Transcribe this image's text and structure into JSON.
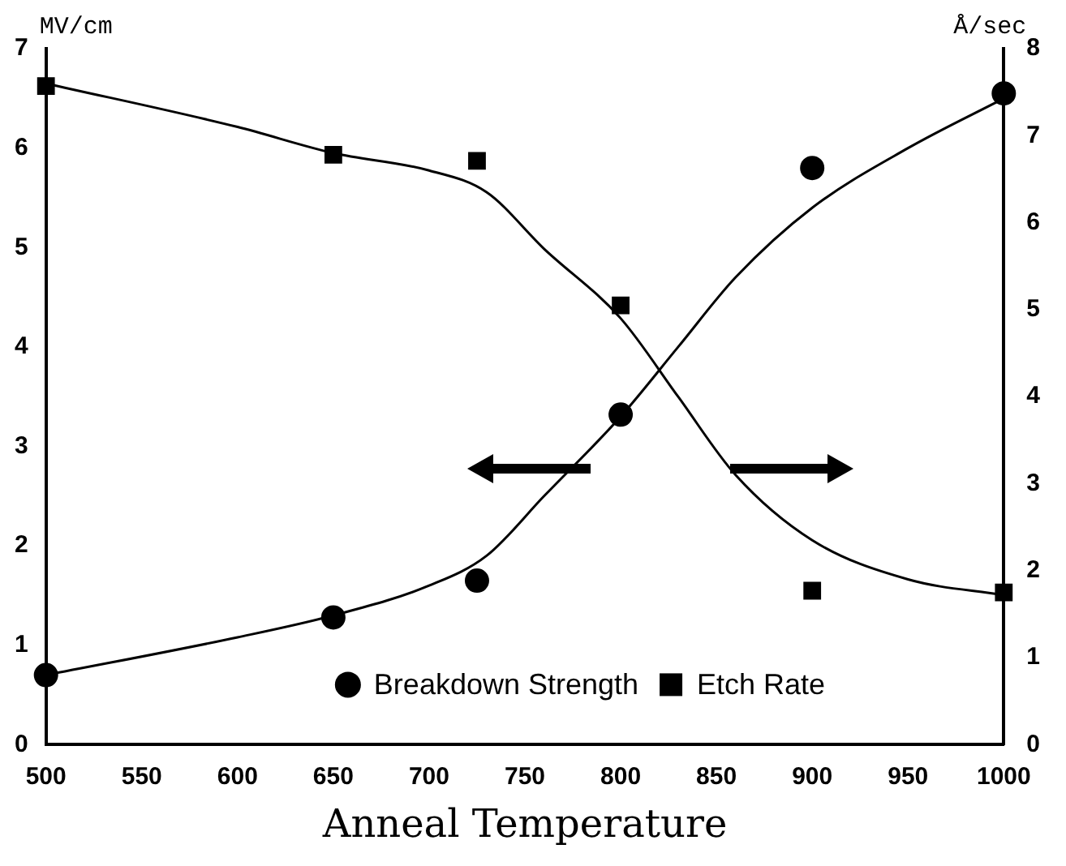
{
  "chart_data": {
    "type": "scatter",
    "xlabel": "Anneal Temperature",
    "ylabel": "MV/cm",
    "y2label": "Å/sec",
    "xlim": [
      500,
      1000
    ],
    "xticks": [
      500,
      550,
      600,
      650,
      700,
      750,
      800,
      850,
      900,
      950,
      1000
    ],
    "ylim": [
      0,
      7
    ],
    "yticks": [
      0,
      1,
      2,
      3,
      4,
      5,
      6,
      7
    ],
    "y2lim": [
      0,
      8
    ],
    "y2ticks": [
      0,
      1,
      2,
      3,
      4,
      5,
      6,
      7,
      8
    ],
    "grid": false,
    "legend": "bottom",
    "series": [
      {
        "name": "Breakdown Strength",
        "type": "scatter",
        "marker": "circle",
        "color": "#000000",
        "x": [
          500,
          650,
          725,
          800,
          900,
          1000
        ],
        "values": [
          0.7,
          1.28,
          1.65,
          3.32,
          5.8,
          6.55
        ]
      },
      {
        "name": "Etch Rate",
        "type": "scatter",
        "marker": "square",
        "axis": "y2",
        "color": "#000000",
        "x": [
          500,
          650,
          725,
          800,
          900,
          1000
        ],
        "values": [
          7.57,
          6.78,
          6.71,
          5.05,
          1.77,
          1.75
        ]
      },
      {
        "type": "line",
        "marker": "none",
        "color": "#000000",
        "x": [
          500,
          600,
          650,
          700,
          730,
          760,
          800,
          830,
          860,
          900,
          950,
          1000
        ],
        "values": [
          0.7,
          1.08,
          1.3,
          1.6,
          1.9,
          2.5,
          3.3,
          4.0,
          4.7,
          5.4,
          6.0,
          6.5
        ]
      },
      {
        "type": "line",
        "marker": "none",
        "axis": "y2",
        "color": "#000000",
        "x": [
          500,
          600,
          650,
          700,
          730,
          760,
          800,
          830,
          860,
          900,
          950,
          1000
        ],
        "values": [
          7.6,
          7.1,
          6.8,
          6.6,
          6.35,
          5.7,
          4.9,
          4.0,
          3.1,
          2.35,
          1.9,
          1.72
        ]
      }
    ]
  }
}
